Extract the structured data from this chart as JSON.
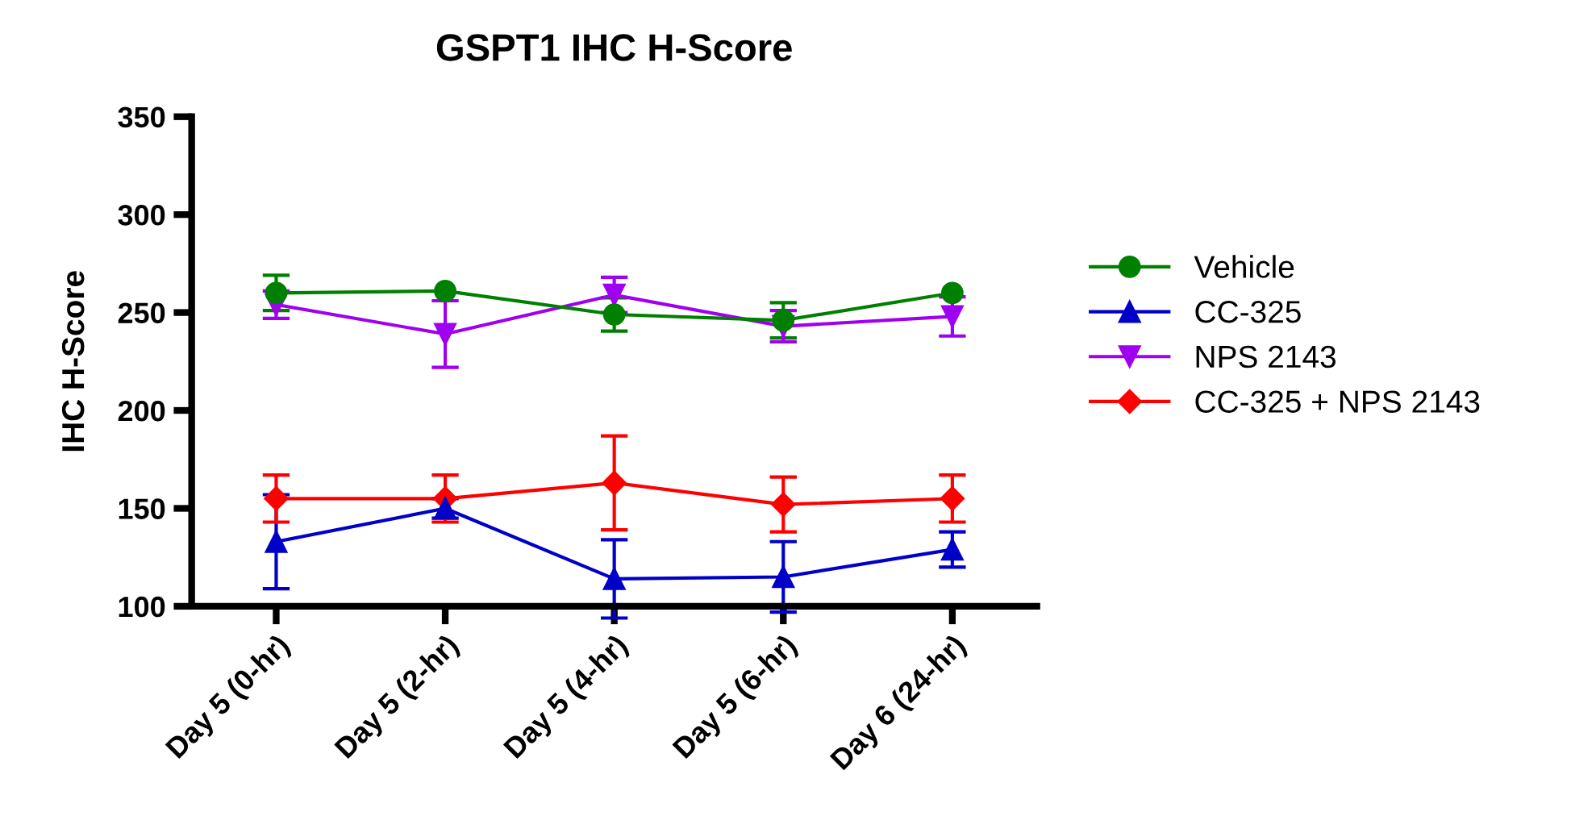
{
  "chart_data": {
    "type": "line",
    "title": "GSPT1 IHC H-Score",
    "ylabel": "IHC H-Score",
    "categories": [
      "Day 5 (0-hr)",
      "Day 5 (2-hr)",
      "Day 5 (4-hr)",
      "Day 5 (6-hr)",
      "Day 6 (24-hr)"
    ],
    "ylim": [
      100,
      350
    ],
    "yticks": [
      100,
      150,
      200,
      250,
      300,
      350
    ],
    "grid": false,
    "legend": "right",
    "series": [
      {
        "name": "Vehicle",
        "color": "#008000",
        "marker": "circle",
        "values": [
          260,
          261,
          249,
          246,
          260
        ],
        "errors": [
          9,
          null,
          8.5,
          9,
          null
        ]
      },
      {
        "name": "CC-325",
        "color": "#0000c8",
        "marker": "triangle",
        "values": [
          133,
          150,
          114,
          115,
          129
        ],
        "errors": [
          24,
          5,
          20,
          18,
          9
        ]
      },
      {
        "name": "NPS 2143",
        "color": "#a000f0",
        "marker": "triangle_down",
        "values": [
          254,
          239,
          259,
          243,
          248
        ],
        "errors": [
          7,
          17,
          9,
          8,
          10
        ]
      },
      {
        "name": "CC-325 + NPS 2143",
        "color": "#ff0000",
        "marker": "diamond",
        "values": [
          155,
          155,
          163,
          152,
          155
        ],
        "errors": [
          12,
          12,
          24,
          14,
          12
        ]
      }
    ]
  }
}
